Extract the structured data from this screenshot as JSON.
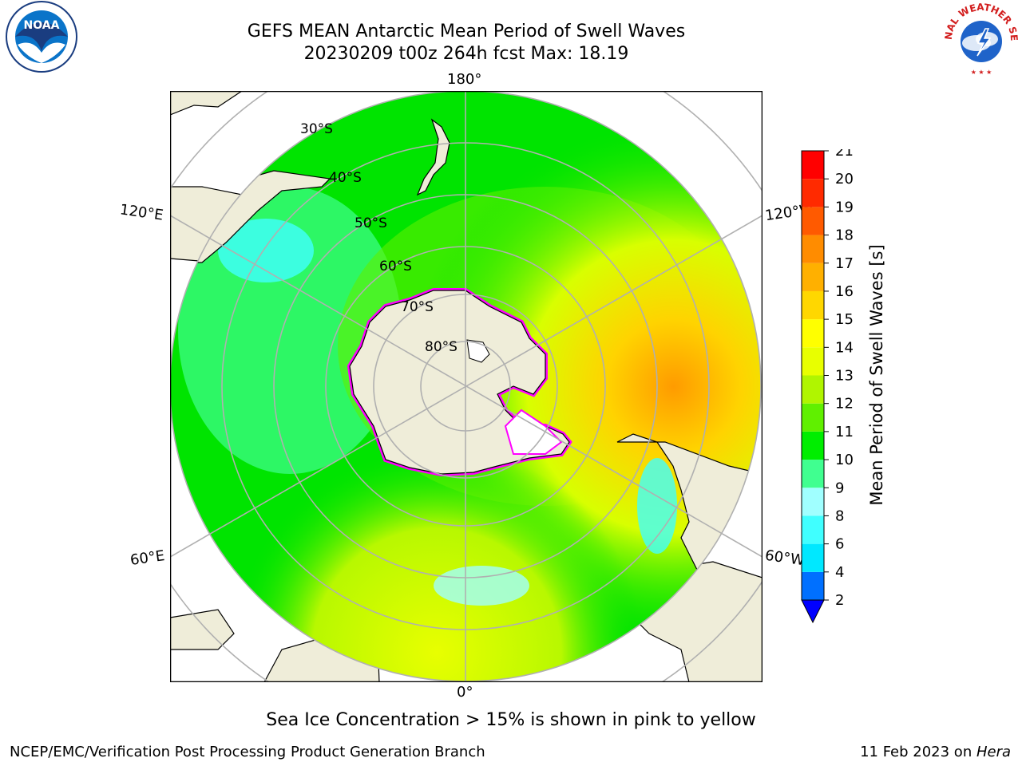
{
  "title": {
    "line1": "GEFS MEAN Antarctic Mean Period of Swell Waves",
    "line2": "20230209 t00z 264h fcst   Max: 18.19"
  },
  "map": {
    "projection": "south-polar-stereographic",
    "lon_labels": {
      "top": "180°",
      "bottom": "0°",
      "upper_left": "120°E",
      "upper_right": "120°W",
      "lower_left": "60°E",
      "lower_right": "60°W"
    },
    "lat_labels": [
      "30°S",
      "40°S",
      "50°S",
      "60°S",
      "70°S",
      "80°S"
    ],
    "colors": {
      "land": "#efedd9",
      "ocean_min": "#00d4ff",
      "ocean_main": "#00e400",
      "ocean_high": "#f0ff00",
      "sea_ice_low": "#ff00ff",
      "sea_ice_high": "#ffffff"
    }
  },
  "colorbar": {
    "label": "Mean Period of Swell Waves [s]",
    "ticks": [
      "2",
      "4",
      "6",
      "8",
      "9",
      "10",
      "11",
      "12",
      "13",
      "14",
      "15",
      "16",
      "17",
      "18",
      "19",
      "20",
      "21"
    ],
    "colors": [
      "#0000ff",
      "#0070ff",
      "#00e8ff",
      "#40ffff",
      "#a0ffff",
      "#40ff90",
      "#00ee00",
      "#60f000",
      "#b0f500",
      "#e8ff00",
      "#ffff00",
      "#ffd700",
      "#ffb000",
      "#ff8c00",
      "#ff5a00",
      "#ff2a00",
      "#ff0000"
    ]
  },
  "footnote": "Sea Ice Concentration > 15% is shown in pink to yellow",
  "credit": "NCEP/EMC/Verification Post Processing Product Generation Branch",
  "date": {
    "prefix": "11 Feb 2023 on ",
    "machine": "Hera"
  },
  "logos": {
    "left": "NOAA",
    "right": "NATIONAL WEATHER SERVICE"
  }
}
